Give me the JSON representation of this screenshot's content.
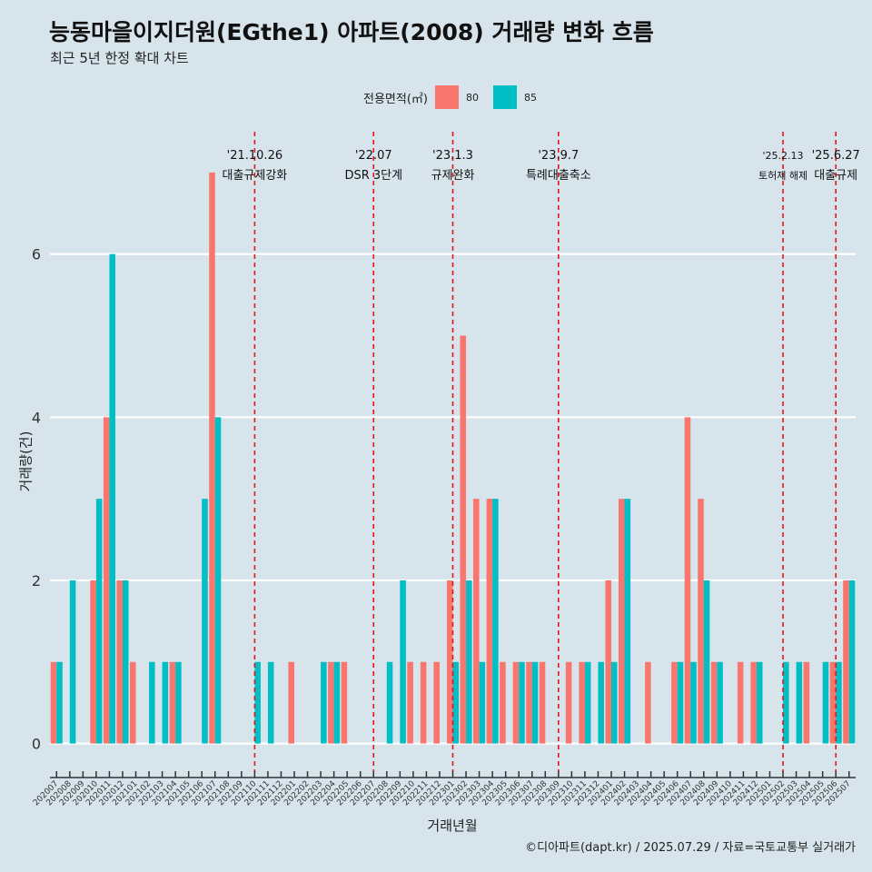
{
  "title": "능동마을이지더원(EGthe1) 아파트(2008) 거래량 변화 흐름",
  "subtitle": "최근 5년 한정 확대 차트",
  "caption": "©디아파트(dapt.kr) / 2025.07.29 / 자료=국토교통부 실거래가",
  "legend": {
    "title": "전용면적(㎡)",
    "items": [
      {
        "label": "80",
        "color": "#f8766d"
      },
      {
        "label": "85",
        "color": "#00bfc4"
      }
    ]
  },
  "chart_data": {
    "type": "bar",
    "xlabel": "거래년월",
    "ylabel": "거래량(건)",
    "ylim": [
      -0.35,
      7.5
    ],
    "yticks": [
      0,
      2,
      4,
      6
    ],
    "grid": true,
    "legend_position": "top",
    "categories": [
      "202007",
      "202008",
      "202009",
      "202010",
      "202011",
      "202012",
      "202101",
      "202102",
      "202103",
      "202104",
      "202105",
      "202106",
      "202107",
      "202108",
      "202109",
      "202110",
      "202111",
      "202112",
      "202201",
      "202202",
      "202203",
      "202204",
      "202205",
      "202206",
      "202207",
      "202208",
      "202209",
      "202210",
      "202211",
      "202212",
      "202301",
      "202302",
      "202303",
      "202304",
      "202305",
      "202306",
      "202307",
      "202308",
      "202309",
      "202310",
      "202311",
      "202312",
      "202401",
      "202402",
      "202403",
      "202404",
      "202405",
      "202406",
      "202407",
      "202408",
      "202409",
      "202410",
      "202411",
      "202412",
      "202501",
      "202502",
      "202503",
      "202504",
      "202505",
      "202506",
      "202507"
    ],
    "series": [
      {
        "name": "80",
        "color": "#f8766d",
        "values": [
          1,
          0,
          0,
          2,
          4,
          2,
          1,
          0,
          0,
          1,
          0,
          0,
          7,
          0,
          0,
          0,
          0,
          0,
          1,
          0,
          0,
          1,
          1,
          0,
          0,
          0,
          0,
          1,
          1,
          1,
          2,
          5,
          3,
          3,
          1,
          1,
          1,
          1,
          0,
          1,
          1,
          0,
          2,
          3,
          0,
          1,
          0,
          1,
          4,
          3,
          1,
          0,
          1,
          1,
          0,
          0,
          0,
          1,
          0,
          1,
          2
        ]
      },
      {
        "name": "85",
        "color": "#00bfc4",
        "values": [
          1,
          2,
          0,
          3,
          6,
          2,
          0,
          1,
          1,
          1,
          0,
          3,
          4,
          0,
          0,
          1,
          1,
          0,
          0,
          0,
          1,
          1,
          0,
          0,
          0,
          1,
          2,
          0,
          0,
          0,
          1,
          2,
          1,
          3,
          0,
          1,
          1,
          0,
          0,
          0,
          1,
          1,
          1,
          3,
          0,
          0,
          0,
          1,
          1,
          2,
          1,
          0,
          0,
          1,
          0,
          1,
          1,
          0,
          1,
          1,
          2
        ]
      }
    ],
    "annotations": [
      {
        "x": "202110",
        "date": "'21.10.26",
        "label": "대출규제강화"
      },
      {
        "x": "202207",
        "date": "'22.07",
        "label": "DSR 3단계"
      },
      {
        "x": "202301",
        "date": "'23.1.3",
        "label": "규제완화"
      },
      {
        "x": "202309",
        "date": "'23.9.7",
        "label": "특례대출축소"
      },
      {
        "x": "202502",
        "date": "'25.2.13",
        "label": "토허제 해제"
      },
      {
        "x": "202506",
        "date": "'25.6.27",
        "label": "대출규제"
      }
    ]
  }
}
